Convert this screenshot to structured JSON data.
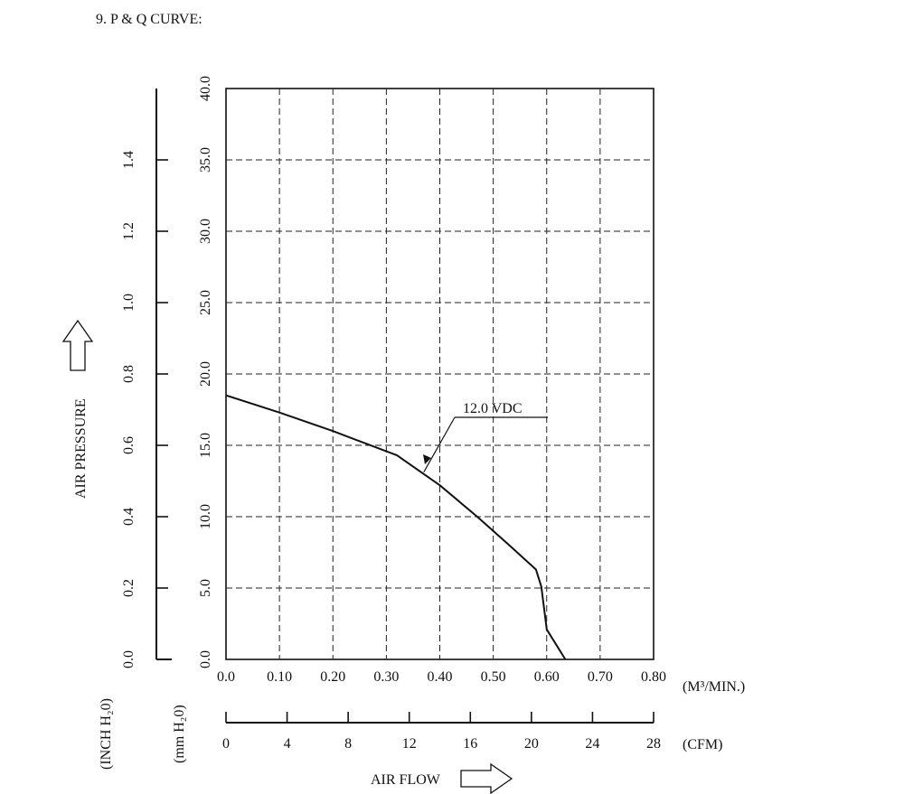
{
  "heading": "9. P & Q CURVE:",
  "chart_data": {
    "type": "line",
    "series": [
      {
        "name": "12.0 VDC",
        "x": [
          0.0,
          0.1,
          0.2,
          0.32,
          0.4,
          0.47,
          0.53,
          0.58,
          0.59,
          0.6,
          0.635
        ],
        "y": [
          18.5,
          17.3,
          16.0,
          14.3,
          12.2,
          10.0,
          8.0,
          6.3,
          5.1,
          2.1,
          0.0
        ]
      }
    ],
    "x_axis": {
      "label": "AIR FLOW",
      "unit": "(M³/MIN.)",
      "range": [
        0.0,
        0.8
      ],
      "ticks": [
        "0.0",
        "0.10",
        "0.20",
        "0.30",
        "0.40",
        "0.50",
        "0.60",
        "0.70",
        "0.80"
      ]
    },
    "x2_axis": {
      "unit": "(CFM)",
      "range": [
        0,
        28
      ],
      "ticks": [
        "0",
        "4",
        "8",
        "12",
        "16",
        "20",
        "24",
        "28"
      ]
    },
    "y_axis": {
      "label": "AIR PRESSURE",
      "unit": "(mm H₂0)",
      "range": [
        0.0,
        40.0
      ],
      "ticks": [
        "0.0",
        "5.0",
        "10.0",
        "15.0",
        "20.0",
        "25.0",
        "30.0",
        "35.0",
        "40.0"
      ]
    },
    "y2_axis": {
      "unit": "(INCH H₂0)",
      "range": [
        0.0,
        1.6
      ],
      "ticks": [
        "0.0",
        "0.2",
        "0.4",
        "0.6",
        "0.8",
        "1.0",
        "1.2",
        "1.4"
      ]
    },
    "annotation": {
      "text": "12.0 VDC",
      "x": 0.37,
      "y": 13.5
    },
    "grid": true
  }
}
